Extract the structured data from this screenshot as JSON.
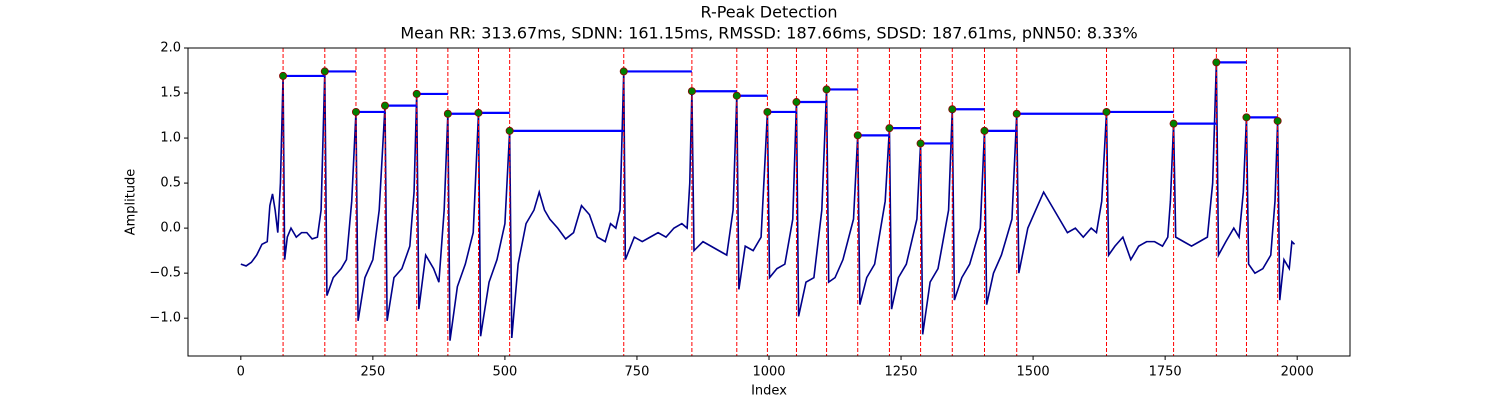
{
  "chart_data": {
    "type": "line",
    "title": "R-Peak Detection",
    "subtitle": "Mean RR: 313.67ms, SDNN: 161.15ms, RMSSD: 187.66ms, SDSD: 187.61ms, pNN50: 8.33%",
    "x_label": "Index",
    "y_label": "Amplitude",
    "xlim": [
      -100,
      2100
    ],
    "ylim": [
      -1.42,
      2.0
    ],
    "xticks": [
      0,
      250,
      500,
      750,
      1000,
      1250,
      1500,
      1750,
      2000
    ],
    "yticks": [
      {
        "value": -1.0,
        "label": "−1.0"
      },
      {
        "value": -0.5,
        "label": "−0.5"
      },
      {
        "value": 0.0,
        "label": "0.0"
      },
      {
        "value": 0.5,
        "label": "0.5"
      },
      {
        "value": 1.0,
        "label": "1.0"
      },
      {
        "value": 1.5,
        "label": "1.5"
      },
      {
        "value": 2.0,
        "label": "2.0"
      }
    ],
    "grid": false,
    "signal": {
      "color": "#00008b",
      "x": [
        0,
        10,
        20,
        30,
        40,
        50,
        55,
        60,
        65,
        70,
        75,
        80,
        83,
        88,
        95,
        105,
        115,
        125,
        135,
        145,
        152,
        159,
        163,
        175,
        190,
        200,
        210,
        218,
        222,
        235,
        250,
        262,
        273,
        277,
        290,
        305,
        320,
        328,
        333,
        337,
        350,
        365,
        375,
        385,
        392,
        396,
        410,
        425,
        440,
        450,
        454,
        470,
        485,
        500,
        509,
        513,
        525,
        540,
        555,
        565,
        575,
        585,
        600,
        615,
        630,
        645,
        660,
        675,
        690,
        700,
        710,
        718,
        725,
        728,
        745,
        760,
        775,
        790,
        805,
        820,
        835,
        845,
        850,
        854,
        858,
        875,
        890,
        905,
        920,
        932,
        939,
        943,
        955,
        970,
        985,
        992,
        997,
        1001,
        1015,
        1030,
        1045,
        1052,
        1056,
        1070,
        1085,
        1100,
        1109,
        1113,
        1125,
        1140,
        1160,
        1168,
        1172,
        1185,
        1200,
        1220,
        1228,
        1232,
        1245,
        1260,
        1280,
        1287,
        1291,
        1305,
        1320,
        1340,
        1347,
        1351,
        1365,
        1380,
        1400,
        1408,
        1412,
        1425,
        1440,
        1460,
        1469,
        1473,
        1490,
        1505,
        1520,
        1535,
        1550,
        1565,
        1580,
        1595,
        1610,
        1620,
        1630,
        1639,
        1643,
        1655,
        1670,
        1685,
        1700,
        1715,
        1730,
        1745,
        1755,
        1760,
        1766,
        1770,
        1785,
        1800,
        1815,
        1830,
        1840,
        1847,
        1851,
        1865,
        1880,
        1890,
        1898,
        1904,
        1908,
        1920,
        1935,
        1950,
        1958,
        1963,
        1967,
        1975,
        1985,
        1990,
        1995
      ],
      "values": [
        -0.4,
        -0.42,
        -0.38,
        -0.3,
        -0.18,
        -0.15,
        0.25,
        0.38,
        0.2,
        -0.05,
        0.5,
        1.69,
        -0.35,
        -0.1,
        0.0,
        -0.1,
        -0.05,
        -0.05,
        -0.12,
        -0.1,
        0.2,
        1.74,
        -0.75,
        -0.55,
        -0.45,
        -0.35,
        0.3,
        1.29,
        -1.03,
        -0.55,
        -0.35,
        0.2,
        1.36,
        -1.03,
        -0.55,
        -0.45,
        -0.2,
        0.4,
        1.49,
        -0.9,
        -0.3,
        -0.45,
        -0.6,
        0.2,
        1.27,
        -1.25,
        -0.65,
        -0.4,
        -0.05,
        1.28,
        -1.2,
        -0.6,
        -0.35,
        0.05,
        1.08,
        -1.22,
        -0.4,
        0.05,
        0.2,
        0.4,
        0.2,
        0.1,
        0.0,
        -0.12,
        -0.05,
        0.25,
        0.15,
        -0.1,
        -0.15,
        0.05,
        0.0,
        0.2,
        1.74,
        -0.35,
        -0.1,
        -0.15,
        -0.1,
        -0.05,
        -0.1,
        0.0,
        0.05,
        0.0,
        0.5,
        1.52,
        -0.25,
        -0.15,
        -0.2,
        -0.25,
        -0.3,
        0.2,
        1.47,
        -0.68,
        -0.2,
        -0.25,
        -0.1,
        0.7,
        1.29,
        -0.55,
        -0.45,
        -0.4,
        0.1,
        1.4,
        -0.98,
        -0.6,
        -0.55,
        0.2,
        1.54,
        -0.6,
        -0.55,
        -0.35,
        0.1,
        1.03,
        -0.85,
        -0.55,
        -0.4,
        0.3,
        1.11,
        -0.9,
        -0.55,
        -0.4,
        0.1,
        0.94,
        -1.18,
        -0.6,
        -0.45,
        0.2,
        1.32,
        -0.8,
        -0.55,
        -0.4,
        0.0,
        1.08,
        -0.85,
        -0.5,
        -0.3,
        0.1,
        1.27,
        -0.5,
        0.0,
        0.2,
        0.4,
        0.25,
        0.1,
        -0.05,
        0.0,
        -0.1,
        0.0,
        -0.05,
        0.3,
        1.29,
        -0.3,
        -0.2,
        -0.1,
        -0.35,
        -0.2,
        -0.15,
        -0.15,
        -0.2,
        -0.1,
        0.3,
        1.16,
        -0.1,
        -0.15,
        -0.2,
        -0.15,
        -0.1,
        0.5,
        1.84,
        -0.3,
        -0.15,
        0.0,
        -0.1,
        0.4,
        1.23,
        -0.4,
        -0.5,
        -0.45,
        -0.3,
        0.3,
        1.19,
        -0.8,
        -0.35,
        -0.45,
        -0.15,
        -0.18
      ]
    },
    "peaks": {
      "color": "green",
      "edge_color": "#8b0000",
      "line_color": "red",
      "rr_color": "blue",
      "x": [
        80,
        159,
        218,
        273,
        333,
        392,
        450,
        509,
        725,
        854,
        939,
        997,
        1052,
        1109,
        1168,
        1228,
        1287,
        1347,
        1408,
        1469,
        1639,
        1766,
        1847,
        1904,
        1963
      ],
      "values": [
        1.69,
        1.74,
        1.29,
        1.36,
        1.49,
        1.27,
        1.28,
        1.08,
        1.74,
        1.52,
        1.47,
        1.29,
        1.4,
        1.54,
        1.03,
        1.11,
        0.94,
        1.32,
        1.08,
        1.27,
        1.29,
        1.16,
        1.84,
        1.23,
        1.19
      ]
    }
  }
}
